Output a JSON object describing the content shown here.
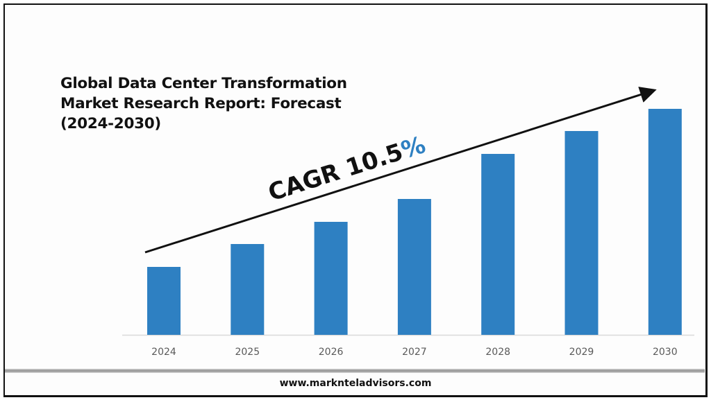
{
  "title_lines": [
    "Global Data Center Transformation",
    "Market Research Report: Forecast",
    "(2024-2030)"
  ],
  "cagr": {
    "prefix": "CAGR 10.5",
    "suffix": "%"
  },
  "footer": "www.marknteladvisors.com",
  "colors": {
    "bar": "#2e80c2",
    "percent": "#2e80c2",
    "arrow": "#111111"
  },
  "chart_data": {
    "type": "bar",
    "title": "Global Data Center Transformation Market Research Report: Forecast (2024-2030)",
    "annotation": "CAGR 10.5%",
    "categories": [
      "2024",
      "2025",
      "2026",
      "2027",
      "2028",
      "2029",
      "2030"
    ],
    "values": [
      98,
      131,
      163,
      196,
      261,
      294,
      326
    ],
    "value_units": "relative (no y-axis scale shown)",
    "xlabel": "",
    "ylabel": "",
    "ylim": [
      0,
      340
    ],
    "grid": false,
    "legend": "none"
  }
}
